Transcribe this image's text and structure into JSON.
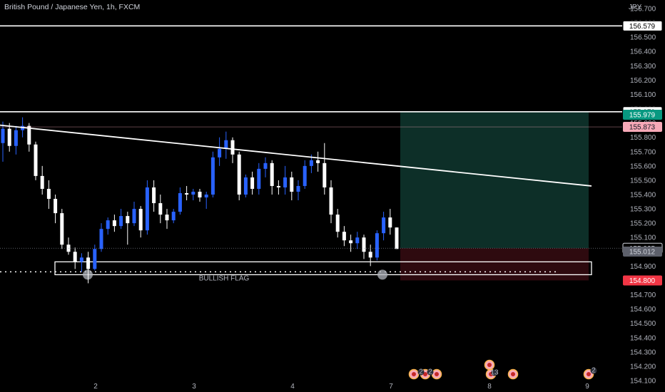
{
  "title": "British Pound / Japanese Yen, 1h, FXCM",
  "currency": "JPY",
  "colors": {
    "background": "#000000",
    "candle_up": "#2962ff",
    "candle_down": "#ffffff",
    "grid_text": "#b2b5be",
    "line": "#ffffff",
    "profit_zone": "#0d2f28",
    "loss_zone": "#2e0a0f",
    "tag_target": "#089981",
    "tag_stop": "#f23645",
    "tag_pink": "#f7a9b8",
    "tag_current": "#d1d4dc",
    "tag_grey": "#5d606b"
  },
  "chart_data": {
    "type": "candlestick",
    "y_range": [
      154.07,
      156.73
    ],
    "y_ticks": [
      "156.700",
      "156.600",
      "156.500",
      "156.400",
      "156.300",
      "156.200",
      "156.100",
      "156.000",
      "155.900",
      "155.800",
      "155.700",
      "155.600",
      "155.500",
      "155.400",
      "155.300",
      "155.200",
      "155.100",
      "155.000",
      "154.900",
      "154.800",
      "154.700",
      "154.600",
      "154.500",
      "154.400",
      "154.300",
      "154.200",
      "154.100"
    ],
    "x_ticks": [
      "2",
      "3",
      "4",
      "7",
      "8",
      "9"
    ],
    "candles": [
      [
        155.76,
        155.91,
        155.63,
        155.86
      ],
      [
        155.86,
        155.9,
        155.7,
        155.74
      ],
      [
        155.74,
        155.88,
        155.68,
        155.85
      ],
      [
        155.85,
        155.94,
        155.8,
        155.88
      ],
      [
        155.88,
        155.9,
        155.7,
        155.75
      ],
      [
        155.75,
        155.77,
        155.5,
        155.53
      ],
      [
        155.53,
        155.6,
        155.4,
        155.44
      ],
      [
        155.44,
        155.5,
        155.3,
        155.37
      ],
      [
        155.37,
        155.4,
        155.2,
        155.27
      ],
      [
        155.27,
        155.3,
        155.02,
        155.05
      ],
      [
        155.05,
        155.1,
        154.98,
        155.0
      ],
      [
        155.0,
        155.03,
        154.88,
        154.93
      ],
      [
        154.93,
        154.99,
        154.86,
        154.96
      ],
      [
        154.96,
        155.0,
        154.78,
        154.88
      ],
      [
        154.88,
        155.05,
        154.87,
        155.02
      ],
      [
        155.02,
        155.2,
        155.0,
        155.16
      ],
      [
        155.16,
        155.24,
        155.12,
        155.22
      ],
      [
        155.22,
        155.26,
        155.14,
        155.18
      ],
      [
        155.18,
        155.3,
        155.16,
        155.25
      ],
      [
        155.25,
        155.28,
        155.05,
        155.2
      ],
      [
        155.2,
        155.35,
        155.18,
        155.3
      ],
      [
        155.3,
        155.32,
        155.1,
        155.15
      ],
      [
        155.15,
        155.5,
        155.12,
        155.45
      ],
      [
        155.45,
        155.5,
        155.28,
        155.34
      ],
      [
        155.34,
        155.4,
        155.2,
        155.26
      ],
      [
        155.26,
        155.3,
        155.16,
        155.22
      ],
      [
        155.22,
        155.3,
        155.2,
        155.28
      ],
      [
        155.28,
        155.45,
        155.26,
        155.41
      ],
      [
        155.41,
        155.46,
        155.36,
        155.4
      ],
      [
        155.4,
        155.44,
        155.36,
        155.42
      ],
      [
        155.42,
        155.44,
        155.35,
        155.38
      ],
      [
        155.38,
        155.42,
        155.3,
        155.4
      ],
      [
        155.4,
        155.7,
        155.38,
        155.66
      ],
      [
        155.66,
        155.8,
        155.6,
        155.72
      ],
      [
        155.72,
        155.84,
        155.65,
        155.78
      ],
      [
        155.78,
        155.8,
        155.62,
        155.68
      ],
      [
        155.68,
        155.7,
        155.36,
        155.4
      ],
      [
        155.4,
        155.54,
        155.38,
        155.52
      ],
      [
        155.52,
        155.56,
        155.4,
        155.44
      ],
      [
        155.44,
        155.62,
        155.4,
        155.58
      ],
      [
        155.58,
        155.66,
        155.52,
        155.62
      ],
      [
        155.62,
        155.64,
        155.4,
        155.46
      ],
      [
        155.46,
        155.5,
        155.4,
        155.45
      ],
      [
        155.45,
        155.6,
        155.4,
        155.52
      ],
      [
        155.52,
        155.56,
        155.36,
        155.42
      ],
      [
        155.42,
        155.5,
        155.36,
        155.46
      ],
      [
        155.46,
        155.64,
        155.44,
        155.6
      ],
      [
        155.6,
        155.68,
        155.55,
        155.64
      ],
      [
        155.64,
        155.7,
        155.56,
        155.62
      ],
      [
        155.62,
        155.76,
        155.4,
        155.45
      ],
      [
        155.45,
        155.5,
        155.2,
        155.26
      ],
      [
        155.26,
        155.3,
        155.1,
        155.14
      ],
      [
        155.14,
        155.18,
        155.04,
        155.08
      ],
      [
        155.08,
        155.12,
        155.0,
        155.06
      ],
      [
        155.06,
        155.14,
        155.02,
        155.1
      ],
      [
        155.1,
        155.12,
        154.95,
        155.0
      ],
      [
        155.0,
        155.05,
        154.9,
        154.96
      ],
      [
        154.96,
        155.15,
        154.94,
        155.13
      ],
      [
        155.13,
        155.28,
        155.08,
        155.24
      ],
      [
        155.24,
        155.3,
        155.12,
        155.17
      ],
      [
        155.17,
        155.17,
        155.02,
        155.02
      ]
    ],
    "series_names": [],
    "annotations": {
      "horizontal_lines": [
        156.579,
        155.979
      ],
      "trendline": {
        "from": [
          0,
          155.885
        ],
        "to": [
          1,
          155.46
        ]
      },
      "flag_label": "BULLISH FLAG",
      "flag_box": [
        154.84,
        154.9
      ],
      "dotted_support": 154.86,
      "position": {
        "entry": 155.025,
        "target": 155.979,
        "stop": 154.8
      }
    },
    "price_tags": [
      {
        "value": "156.579",
        "kind": "line"
      },
      {
        "value": "155.979",
        "kind": "line"
      },
      {
        "value": "155.979",
        "kind": "target"
      },
      {
        "value": "155.873",
        "kind": "pink"
      },
      {
        "value": "155.025",
        "kind": "current"
      },
      {
        "value": "155.012",
        "kind": "grey"
      },
      {
        "value": "154.800",
        "kind": "stop"
      }
    ],
    "event_badges": [
      "2",
      "2",
      "13",
      "2"
    ]
  }
}
